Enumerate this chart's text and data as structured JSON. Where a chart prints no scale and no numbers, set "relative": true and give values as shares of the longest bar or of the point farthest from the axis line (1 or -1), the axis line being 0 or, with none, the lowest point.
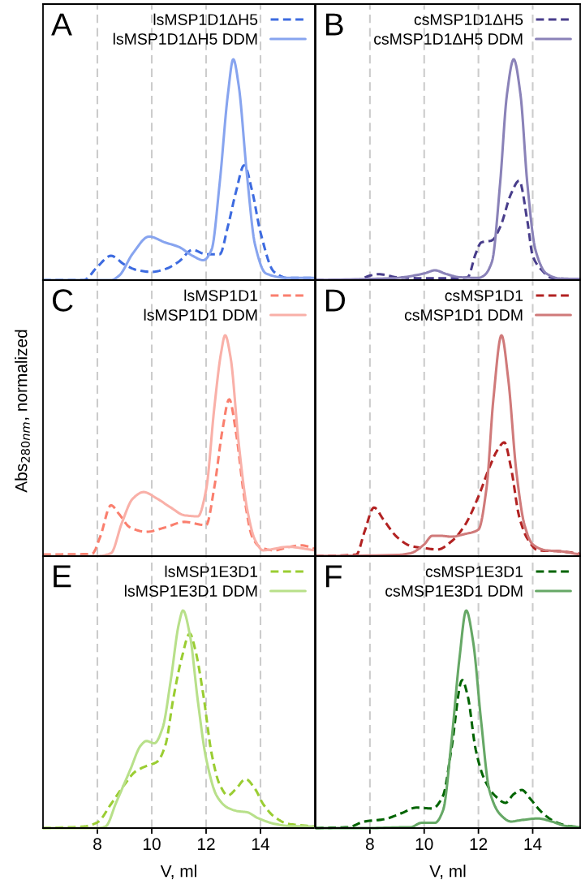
{
  "chart_data": [
    {
      "type": "line",
      "title": "A",
      "relative": true,
      "xlim": [
        6,
        16
      ],
      "xticks": [
        8,
        10,
        12,
        14
      ],
      "grid": "x",
      "legend": "top right",
      "tick_labels": false,
      "series": [
        {
          "name": "lsMSP1D1ΔH5",
          "color": "#3d6be0",
          "line_style": "dashed",
          "x": [
            6,
            7.5,
            8,
            8.5,
            9,
            9.5,
            10,
            10.5,
            11,
            11.5,
            12,
            12.5,
            12.8,
            13.1,
            13.4,
            13.7,
            14,
            14.5,
            15,
            16
          ],
          "values": [
            0,
            0,
            0.06,
            0.11,
            0.07,
            0.044,
            0.037,
            0.05,
            0.084,
            0.137,
            0.117,
            0.117,
            0.243,
            0.4,
            0.52,
            0.4,
            0.216,
            0.037,
            0.01,
            0.01
          ]
        },
        {
          "name": "lsMSP1D1ΔH5 DDM",
          "color": "#87a4ef",
          "line_style": "solid",
          "x": [
            6,
            8,
            8.5,
            8.8,
            9.3,
            9.9,
            10.5,
            11,
            11.5,
            11.9,
            12.2,
            12.5,
            12.8,
            13,
            13.2,
            13.5,
            13.8,
            14.2,
            15,
            16
          ],
          "values": [
            0,
            0,
            0,
            0.02,
            0.12,
            0.197,
            0.17,
            0.15,
            0.11,
            0.09,
            0.137,
            0.44,
            0.84,
            1,
            0.88,
            0.48,
            0.16,
            0.03,
            0.01,
            0.01
          ]
        }
      ]
    },
    {
      "type": "line",
      "title": "B",
      "relative": true,
      "xlim": [
        6,
        15.75
      ],
      "xticks": [
        8,
        10,
        12,
        14
      ],
      "grid": "x",
      "legend": "top right",
      "tick_labels": false,
      "series": [
        {
          "name": "csMSP1D1ΔH5",
          "color": "#483d8b",
          "line_style": "dashed",
          "x": [
            6,
            7.5,
            8,
            8.3,
            9,
            10,
            11,
            11.6,
            11.9,
            12.1,
            12.5,
            12.8,
            13.2,
            13.5,
            13.8,
            14,
            14.3,
            14.7,
            15.75
          ],
          "values": [
            0,
            0,
            0.02,
            0.027,
            0.013,
            0.008,
            0.008,
            0.013,
            0.12,
            0.17,
            0.18,
            0.24,
            0.39,
            0.45,
            0.27,
            0.11,
            0.05,
            0.01,
            0.003
          ]
        },
        {
          "name": "csMSP1D1ΔH5 DDM",
          "color": "#8a82b8",
          "line_style": "solid",
          "x": [
            6,
            8,
            9,
            10,
            10.4,
            10.8,
            11.3,
            12,
            12.2,
            12.5,
            12.8,
            13.05,
            13.3,
            13.55,
            13.8,
            14.1,
            14.5,
            15,
            15.75
          ],
          "values": [
            0,
            0.005,
            0.01,
            0.03,
            0.044,
            0.028,
            0.013,
            0.01,
            0.02,
            0.084,
            0.44,
            0.84,
            1,
            0.84,
            0.44,
            0.137,
            0.03,
            0.007,
            0.005
          ]
        }
      ]
    },
    {
      "type": "line",
      "title": "C",
      "ylabel": "Abs$_{280nm}$, normalized",
      "relative": true,
      "xlim": [
        6,
        16
      ],
      "xticks": [
        8,
        10,
        12,
        14
      ],
      "grid": "x",
      "legend": "top right",
      "tick_labels": false,
      "series": [
        {
          "name": "lsMSP1D1",
          "color": "#fa7f6e",
          "line_style": "dashed",
          "x": [
            6,
            7.8,
            8.1,
            8.5,
            8.8,
            9.2,
            9.8,
            10.5,
            11.2,
            12,
            12.3,
            12.6,
            12.85,
            13.1,
            13.4,
            13.7,
            14,
            14.5,
            15,
            15.5,
            16
          ],
          "values": [
            0.007,
            0.01,
            0.086,
            0.23,
            0.19,
            0.13,
            0.11,
            0.13,
            0.155,
            0.14,
            0.31,
            0.57,
            0.71,
            0.56,
            0.27,
            0.086,
            0.04,
            0.026,
            0.04,
            0.049,
            0.033
          ]
        },
        {
          "name": "lsMSP1D1 DDM",
          "color": "#f9b0a8",
          "line_style": "solid",
          "x": [
            6,
            8,
            8.5,
            8.9,
            9.3,
            9.7,
            10.2,
            10.7,
            11.2,
            11.7,
            12,
            12.3,
            12.55,
            12.7,
            12.9,
            13.2,
            13.5,
            13.8,
            14.1,
            15,
            16
          ],
          "values": [
            0,
            0,
            0.013,
            0.15,
            0.26,
            0.29,
            0.26,
            0.22,
            0.185,
            0.18,
            0.3,
            0.67,
            0.92,
            1,
            0.9,
            0.51,
            0.22,
            0.073,
            0.026,
            0.042,
            0.026
          ]
        }
      ]
    },
    {
      "type": "line",
      "title": "D",
      "relative": true,
      "xlim": [
        6,
        15.75
      ],
      "xticks": [
        8,
        10,
        12,
        14
      ],
      "grid": "x",
      "legend": "top right",
      "tick_labels": false,
      "series": [
        {
          "name": "csMSP1D1",
          "color": "#b22222",
          "line_style": "dashed",
          "x": [
            6,
            7.5,
            7.8,
            8.15,
            8.5,
            9,
            9.5,
            10,
            10.5,
            11,
            11.5,
            12,
            12.4,
            12.7,
            12.95,
            13.2,
            13.5,
            13.8,
            14.2,
            15,
            15.75
          ],
          "values": [
            0,
            0.007,
            0.11,
            0.22,
            0.165,
            0.086,
            0.046,
            0.036,
            0.03,
            0.066,
            0.14,
            0.27,
            0.4,
            0.48,
            0.515,
            0.4,
            0.18,
            0.08,
            0.026,
            0.022,
            0.01
          ]
        },
        {
          "name": "csMSP1D1 DDM",
          "color": "#d07a7a",
          "line_style": "solid",
          "x": [
            6,
            9,
            9.5,
            10,
            10.3,
            10.6,
            11,
            11.5,
            12,
            12.3,
            12.55,
            12.85,
            13.1,
            13.4,
            13.7,
            14,
            14.5,
            15,
            15.75
          ],
          "values": [
            0,
            0.005,
            0.013,
            0.053,
            0.092,
            0.092,
            0.088,
            0.1,
            0.12,
            0.31,
            0.71,
            1,
            0.8,
            0.38,
            0.14,
            0.053,
            0.026,
            0.022,
            0.007
          ]
        }
      ]
    },
    {
      "type": "line",
      "title": "E",
      "xlabel": "V, ml",
      "relative": true,
      "xlim": [
        6,
        16
      ],
      "xticks": [
        8,
        10,
        12,
        14
      ],
      "grid": "x",
      "legend": "top right",
      "tick_labels": "x",
      "series": [
        {
          "name": "lsMSP1E3D1",
          "color": "#9acd32",
          "line_style": "dashed",
          "x": [
            6,
            7.5,
            8,
            8.5,
            9,
            9.4,
            9.8,
            10.2,
            10.5,
            10.8,
            11.1,
            11.4,
            11.6,
            11.9,
            12.2,
            12.5,
            12.8,
            13.1,
            13.45,
            13.8,
            14.1,
            14.5,
            15,
            16
          ],
          "values": [
            0,
            0.007,
            0.026,
            0.11,
            0.2,
            0.26,
            0.285,
            0.305,
            0.38,
            0.6,
            0.78,
            0.894,
            0.82,
            0.61,
            0.344,
            0.2,
            0.15,
            0.18,
            0.225,
            0.18,
            0.11,
            0.053,
            0.02,
            0.007
          ]
        },
        {
          "name": "lsMSP1E3D1 DDM",
          "color": "#b8e08a",
          "line_style": "solid",
          "x": [
            6,
            8,
            8.3,
            8.7,
            9.2,
            9.6,
            9.8,
            10.1,
            10.4,
            10.7,
            11,
            11.15,
            11.4,
            11.7,
            12,
            12.4,
            12.8,
            13.2,
            13.5,
            13.9,
            14.5,
            15,
            16
          ],
          "values": [
            0,
            0,
            0.007,
            0.12,
            0.265,
            0.38,
            0.4,
            0.39,
            0.46,
            0.68,
            0.94,
            1,
            0.89,
            0.58,
            0.32,
            0.146,
            0.093,
            0.077,
            0.073,
            0.046,
            0.02,
            0.01,
            0.007
          ]
        }
      ]
    },
    {
      "type": "line",
      "title": "F",
      "xlabel": "V, ml",
      "relative": true,
      "xlim": [
        6,
        15.75
      ],
      "xticks": [
        8,
        10,
        12,
        14
      ],
      "grid": "x",
      "legend": "top right",
      "tick_labels": "x",
      "series": [
        {
          "name": "csMSP1E3D1",
          "color": "#006400",
          "line_style": "dashed",
          "x": [
            6,
            7.2,
            7.8,
            8.5,
            9.2,
            9.7,
            10.3,
            10.7,
            11,
            11.4,
            11.6,
            11.9,
            12.2,
            12.6,
            13,
            13.3,
            13.6,
            13.9,
            14.3,
            14.8,
            15.3,
            15.75
          ],
          "values": [
            0,
            0.004,
            0.03,
            0.04,
            0.07,
            0.094,
            0.09,
            0.15,
            0.36,
            0.68,
            0.61,
            0.36,
            0.23,
            0.15,
            0.116,
            0.156,
            0.175,
            0.136,
            0.077,
            0.03,
            0.01,
            0.004
          ]
        },
        {
          "name": "csMSP1E3D1 DDM",
          "color": "#66a866",
          "line_style": "solid",
          "x": [
            6,
            8,
            9,
            9.5,
            9.9,
            10.4,
            10.7,
            11,
            11.3,
            11.55,
            11.8,
            12.1,
            12.4,
            12.8,
            13.2,
            13.6,
            14.2,
            14.7,
            15.2,
            15.75
          ],
          "values": [
            0,
            0,
            0.003,
            0.004,
            0.024,
            0.024,
            0.083,
            0.39,
            0.78,
            1,
            0.86,
            0.49,
            0.175,
            0.063,
            0.03,
            0.037,
            0.044,
            0.03,
            0.01,
            0.004
          ]
        }
      ]
    }
  ]
}
